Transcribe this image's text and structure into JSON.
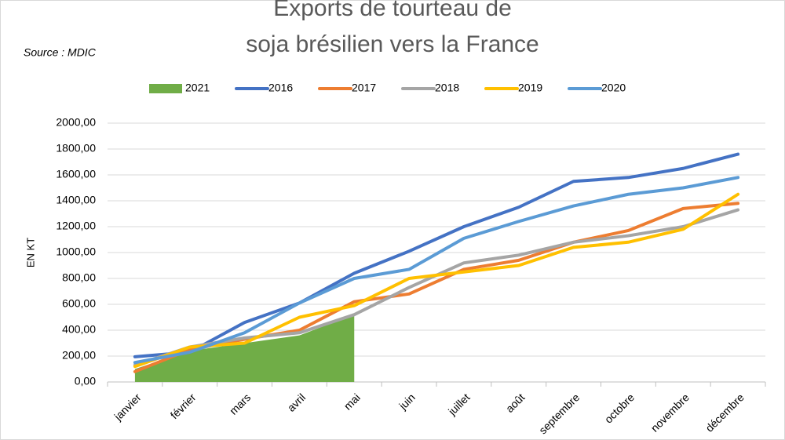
{
  "chart_data": {
    "type": "line",
    "title": [
      "Exports de tourteau de",
      "soja brésilien vers la France"
    ],
    "source": "Source : MDIC",
    "y_label": "EN KT",
    "categories": [
      "janvier",
      "février",
      "mars",
      "avril",
      "mai",
      "juin",
      "juillet",
      "août",
      "septembre",
      "octobre",
      "novembre",
      "décembre"
    ],
    "series": [
      {
        "name": "2021",
        "kind": "area",
        "color": "#70ad47",
        "values": [
          100,
          240,
          300,
          360,
          520,
          null,
          null,
          null,
          null,
          null,
          null,
          null
        ]
      },
      {
        "name": "2016",
        "color": "#4472c4",
        "values": [
          195,
          230,
          460,
          610,
          840,
          1010,
          1200,
          1350,
          1550,
          1580,
          1650,
          1760
        ]
      },
      {
        "name": "2017",
        "color": "#ed7d31",
        "values": [
          80,
          250,
          330,
          400,
          620,
          680,
          870,
          940,
          1080,
          1170,
          1340,
          1380
        ]
      },
      {
        "name": "2018",
        "color": "#a5a5a5",
        "values": [
          130,
          270,
          340,
          380,
          520,
          730,
          920,
          980,
          1080,
          1130,
          1200,
          1330
        ]
      },
      {
        "name": "2019",
        "color": "#ffc000",
        "values": [
          120,
          270,
          300,
          500,
          590,
          800,
          850,
          900,
          1040,
          1080,
          1180,
          1450
        ]
      },
      {
        "name": "2020",
        "color": "#5b9bd5",
        "values": [
          150,
          230,
          380,
          610,
          800,
          870,
          1110,
          1240,
          1360,
          1450,
          1500,
          1580
        ]
      }
    ],
    "ylim": [
      0,
      2000
    ],
    "yticks": [
      {
        "value": 0,
        "label": "0,00"
      },
      {
        "value": 200,
        "label": "200,00"
      },
      {
        "value": 400,
        "label": "400,00"
      },
      {
        "value": 600,
        "label": "600,00"
      },
      {
        "value": 800,
        "label": "800,00"
      },
      {
        "value": 1000,
        "label": "1000,00"
      },
      {
        "value": 1200,
        "label": "1200,00"
      },
      {
        "value": 1400,
        "label": "1400,00"
      },
      {
        "value": 1600,
        "label": "1600,00"
      },
      {
        "value": 1800,
        "label": "1800,00"
      },
      {
        "value": 2000,
        "label": "2000,00"
      }
    ],
    "grid": true,
    "legend": "top"
  }
}
